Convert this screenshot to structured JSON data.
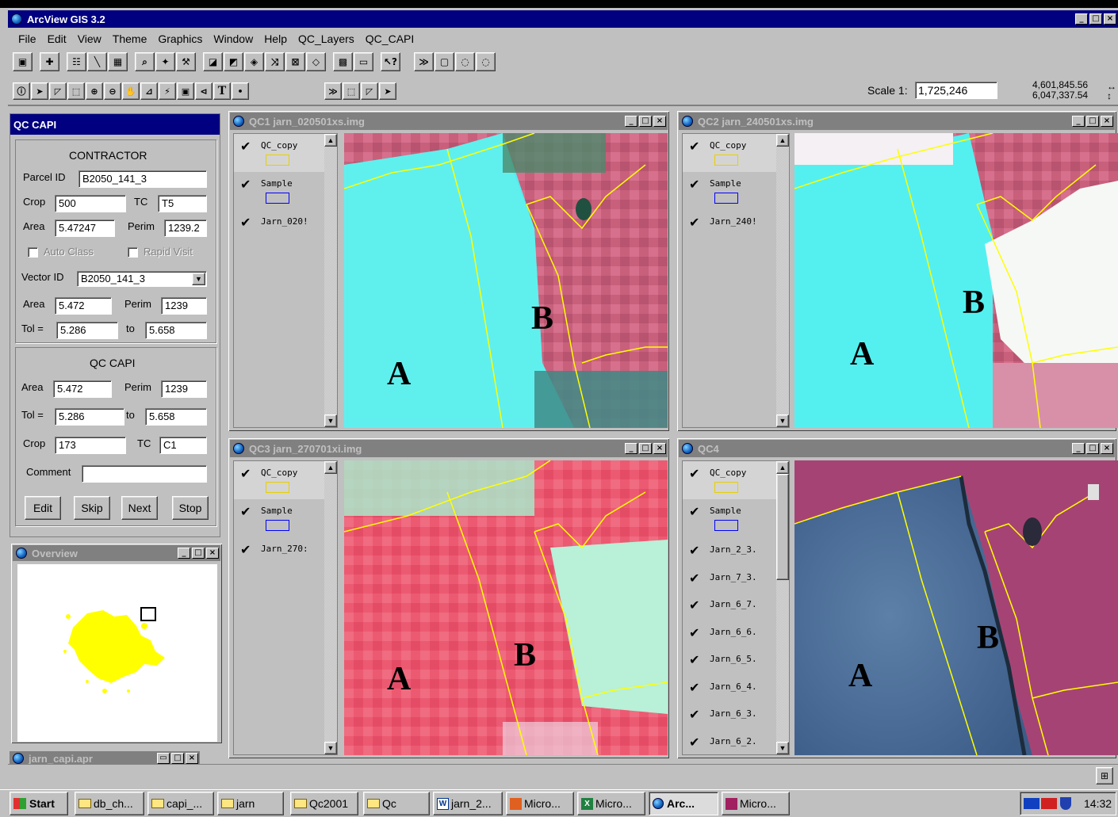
{
  "app": {
    "title": "ArcView GIS 3.2"
  },
  "menu": [
    "File",
    "Edit",
    "View",
    "Theme",
    "Graphics",
    "Window",
    "Help",
    "QC_Layers",
    "QC_CAPI"
  ],
  "scale": {
    "label": "Scale 1:",
    "value": "1,725,246",
    "x": "4,601,845.56",
    "y": "6,047,337.54"
  },
  "qc_panel": {
    "title": "QC CAPI",
    "contractor_header": "CONTRACTOR",
    "parcel_id_label": "Parcel ID",
    "parcel_id": "B2050_141_3",
    "crop_label": "Crop",
    "crop": "500",
    "tc_label": "TC",
    "tc": "T5",
    "area_label": "Area",
    "area": "5.47247",
    "perim_label": "Perim",
    "perim": "1239.2",
    "auto_class": "Auto Class",
    "rapid_visit": "Rapid Visit",
    "vector_id_label": "Vector ID",
    "vector_id": "B2050_141_3",
    "v_area_label": "Area",
    "v_area": "5.472",
    "v_perim_label": "Perim",
    "v_perim": "1239",
    "tol_label": "Tol =",
    "tol_from": "5.286",
    "to_label": "to",
    "tol_to": "5.658",
    "qc_header": "QC CAPI",
    "q_area_label": "Area",
    "q_area": "5.472",
    "q_perim_label": "Perim",
    "q_perim": "1239",
    "q_tol_label": "Tol =",
    "q_tol_from": "5.286",
    "q_to_label": "to",
    "q_tol_to": "5.658",
    "q_crop_label": "Crop",
    "q_crop": "173",
    "q_tc_label": "TC",
    "q_tc": "C1",
    "comment_label": "Comment",
    "comment": "",
    "buttons": {
      "edit": "Edit",
      "skip": "Skip",
      "next": "Next",
      "stop": "Stop"
    }
  },
  "overview": {
    "title": "Overview"
  },
  "project_window": {
    "title": "jarn_capi.apr"
  },
  "views": {
    "qc1": {
      "title": "QC1 jarn_020501xs.img",
      "layers": [
        "QC_copy",
        "Sample",
        "Jarn_020!"
      ],
      "label_a": "A",
      "label_b": "B"
    },
    "qc2": {
      "title": "QC2 jarn_240501xs.img",
      "layers": [
        "QC_copy",
        "Sample",
        "Jarn_240!"
      ],
      "label_a": "A",
      "label_b": "B"
    },
    "qc3": {
      "title": "QC3 jarn_270701xi.img",
      "layers": [
        "QC_copy",
        "Sample",
        "Jarn_270:"
      ],
      "label_a": "A",
      "label_b": "B"
    },
    "qc4": {
      "title": "QC4",
      "layers": [
        "QC_copy",
        "Sample",
        "Jarn_2_3.",
        "Jarn_7_3.",
        "Jarn_6_7.",
        "Jarn_6_6.",
        "Jarn_6_5.",
        "Jarn_6_4.",
        "Jarn_6_3.",
        "Jarn_6_2."
      ],
      "label_a": "A",
      "label_b": "B"
    }
  },
  "taskbar": {
    "start": "Start",
    "items": [
      "db_ch...",
      "capi_...",
      "jarn",
      "Qc2001",
      "Qc",
      "jarn_2...",
      "Micro...",
      "Micro...",
      "Arc...",
      "Micro..."
    ],
    "clock": "14:32"
  },
  "colors": {
    "title_active": "#000080",
    "title_inactive": "#808080",
    "polygon": "#ffff00",
    "sample": "#0000ff"
  }
}
